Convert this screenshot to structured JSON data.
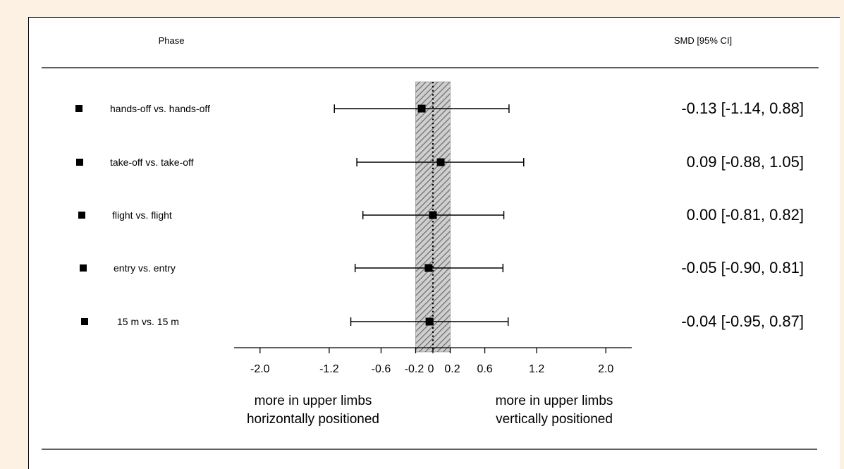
{
  "chart_data": {
    "type": "forest",
    "column_headers": {
      "phase": "Phase",
      "effect": "SMD [95% CI]"
    },
    "rows": [
      {
        "label": "hands-off vs. hands-off",
        "smd": -0.13,
        "ci_low": -1.14,
        "ci_high": 0.88,
        "text": "-0.13 [-1.14, 0.88]"
      },
      {
        "label": "take-off vs. take-off",
        "smd": 0.09,
        "ci_low": -0.88,
        "ci_high": 1.05,
        "text": "0.09 [-0.88, 1.05]"
      },
      {
        "label": "flight vs. flight",
        "smd": 0.0,
        "ci_low": -0.81,
        "ci_high": 0.82,
        "text": "0.00 [-0.81, 0.82]"
      },
      {
        "label": "entry vs. entry",
        "smd": -0.05,
        "ci_low": -0.9,
        "ci_high": 0.81,
        "text": "-0.05 [-0.90, 0.81]"
      },
      {
        "label": "15 m vs. 15 m",
        "smd": -0.04,
        "ci_low": -0.95,
        "ci_high": 0.87,
        "text": "-0.04 [-0.95, 0.87]"
      }
    ],
    "xlim": [
      -2.3,
      2.3
    ],
    "x_ticks": [
      {
        "value": -2.0,
        "label": "-2.0"
      },
      {
        "value": -1.2,
        "label": "-1.2"
      },
      {
        "value": -0.6,
        "label": "-0.6"
      },
      {
        "value": -0.2,
        "label": "-0.2"
      },
      {
        "value": 0.0,
        "label": "0"
      },
      {
        "value": 0.2,
        "label": "0.2"
      },
      {
        "value": 0.6,
        "label": "0.6"
      },
      {
        "value": 1.2,
        "label": "1.2"
      },
      {
        "value": 2.0,
        "label": "2.0"
      }
    ],
    "reference_line": 0,
    "shaded_region": [
      -0.2,
      0.2
    ],
    "direction_labels": {
      "left": [
        "more in upper limbs",
        "horizontally positioned"
      ],
      "right": [
        "more in upper limbs",
        "vertically positioned"
      ]
    }
  }
}
